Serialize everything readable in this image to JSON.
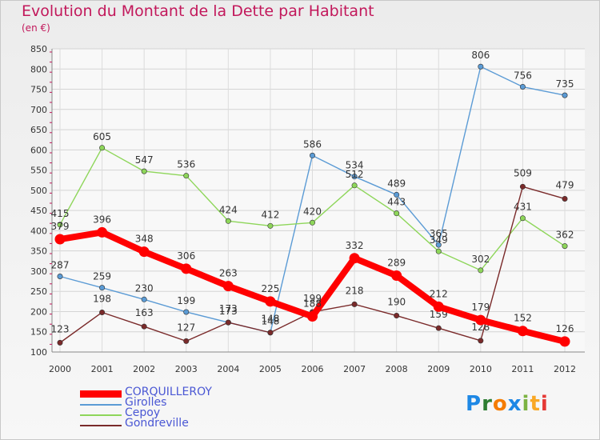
{
  "title": "Evolution du Montant de la Dette par Habitant",
  "subtitle": "(en €)",
  "logo": {
    "text": "Proxiti",
    "letters": [
      "P",
      "r",
      "o",
      "x",
      "i",
      "t",
      "i"
    ],
    "colors": [
      "#1e88e5",
      "#2e7d32",
      "#f57c00",
      "#1e88e5",
      "#7cb342",
      "#f9a825",
      "#e53935"
    ]
  },
  "chart_data": {
    "type": "line",
    "title": "Evolution du Montant de la Dette par Habitant",
    "ylabel": "(en €)",
    "x": [
      "2000",
      "2001",
      "2002",
      "2003",
      "2004",
      "2005",
      "2006",
      "2007",
      "2008",
      "2009",
      "2010",
      "2011",
      "2012"
    ],
    "ylim": [
      100,
      850
    ],
    "yticks": [
      100,
      150,
      200,
      250,
      300,
      350,
      400,
      450,
      500,
      550,
      600,
      650,
      700,
      750,
      800,
      850
    ],
    "grid": true,
    "legend_position": "bottom-left",
    "series": [
      {
        "name": "CORQUILLEROY",
        "color": "#ff0000",
        "values": [
          379,
          396,
          348,
          306,
          263,
          225,
          188,
          332,
          289,
          212,
          179,
          152,
          126
        ]
      },
      {
        "name": "Girolles",
        "color": "#5b9bd5",
        "values": [
          287,
          259,
          230,
          199,
          173,
          148,
          586,
          534,
          489,
          365,
          806,
          756,
          735
        ]
      },
      {
        "name": "Cepoy",
        "color": "#8ed65a",
        "values": [
          415,
          605,
          547,
          536,
          424,
          412,
          420,
          512,
          443,
          349,
          302,
          431,
          362
        ]
      },
      {
        "name": "Gondreville",
        "color": "#7a2a2a",
        "values": [
          123,
          198,
          163,
          127,
          173,
          148,
          199,
          218,
          190,
          159,
          128,
          509,
          479
        ]
      }
    ]
  }
}
